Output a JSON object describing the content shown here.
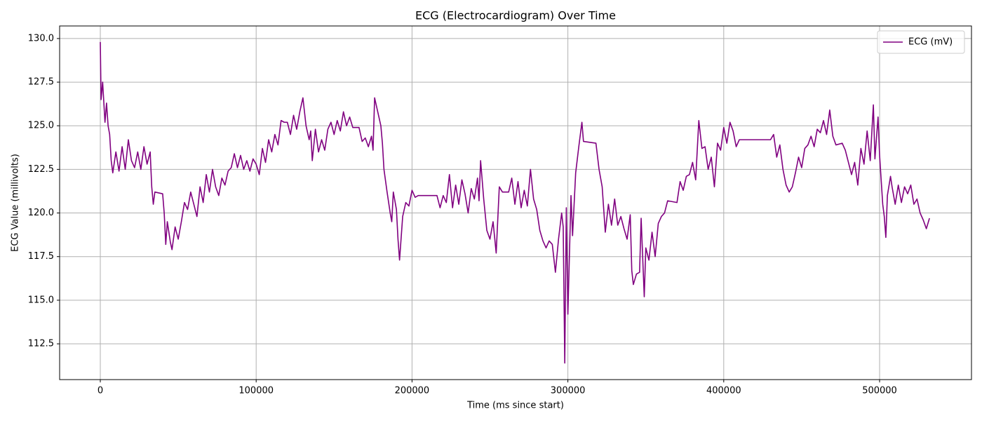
{
  "chart_data": {
    "type": "line",
    "title": "ECG (Electrocardiogram) Over Time",
    "xlabel": "Time (ms since start)",
    "ylabel": "ECG Value (millivolts)",
    "legend": "upper right",
    "grid": true,
    "xlim": [
      -26100,
      558950
    ],
    "ylim": [
      110.45,
      130.72
    ],
    "xticks": [
      0,
      100000,
      200000,
      300000,
      400000,
      500000
    ],
    "yticks": [
      112.5,
      {
        "value": 115,
        "label": "115.0"
      },
      117.5,
      {
        "value": 120,
        "label": "120.0"
      },
      122.5,
      {
        "value": 125,
        "label": "125.0"
      },
      127.5,
      {
        "value": 130,
        "label": "130.0"
      }
    ],
    "x": [
      0,
      500,
      1500,
      3000,
      4000,
      5000,
      6000,
      7000,
      8000,
      10000,
      12000,
      14000,
      16000,
      18000,
      20000,
      22000,
      24000,
      26000,
      28000,
      30000,
      32000,
      33000,
      34000,
      35000,
      40000,
      41000,
      42000,
      43000,
      45000,
      46000,
      48000,
      50000,
      52000,
      54000,
      56000,
      58000,
      60000,
      62000,
      64000,
      66000,
      68000,
      70000,
      72000,
      74000,
      76000,
      78000,
      80000,
      82000,
      84000,
      86000,
      88000,
      90000,
      92000,
      94000,
      96000,
      98000,
      100000,
      102000,
      104000,
      106000,
      108000,
      110000,
      112000,
      114000,
      116000,
      118000,
      120000,
      122000,
      124000,
      126000,
      128000,
      130000,
      132000,
      134000,
      135000,
      136000,
      138000,
      140000,
      142000,
      144000,
      146000,
      148000,
      150000,
      152000,
      154000,
      156000,
      158000,
      160000,
      162000,
      166000,
      168000,
      170000,
      172000,
      174000,
      175000,
      176000,
      178000,
      180000,
      181000,
      182000,
      184000,
      186000,
      187000,
      188000,
      190000,
      191000,
      192000,
      194000,
      196000,
      198000,
      200000,
      202000,
      204000,
      216000,
      218000,
      220000,
      222000,
      224000,
      226000,
      228000,
      230000,
      232000,
      234000,
      236000,
      238000,
      240000,
      242000,
      243000,
      244000,
      246000,
      248000,
      250000,
      252000,
      254000,
      256000,
      258000,
      262000,
      264000,
      266000,
      268000,
      270000,
      272000,
      274000,
      276000,
      278000,
      280000,
      282000,
      284000,
      286000,
      288000,
      290000,
      292000,
      294000,
      296000,
      297000,
      298000,
      299000,
      300000,
      302000,
      303000,
      305000,
      307000,
      309000,
      310000,
      318000,
      320000,
      322000,
      324000,
      326000,
      328000,
      330000,
      332000,
      334000,
      336000,
      338000,
      340000,
      341000,
      342000,
      344000,
      346000,
      347000,
      349000,
      350000,
      352000,
      354000,
      356000,
      358000,
      360000,
      362000,
      364000,
      370000,
      372000,
      374000,
      376000,
      378000,
      380000,
      382000,
      384000,
      386000,
      388000,
      390000,
      392000,
      394000,
      396000,
      398000,
      400000,
      402000,
      404000,
      406000,
      408000,
      410000,
      430000,
      432000,
      434000,
      436000,
      438000,
      440000,
      442000,
      444000,
      446000,
      448000,
      450000,
      452000,
      454000,
      456000,
      458000,
      460000,
      462000,
      464000,
      466000,
      468000,
      470000,
      472000,
      476000,
      478000,
      480000,
      482000,
      484000,
      486000,
      488000,
      490000,
      492000,
      494000,
      496000,
      497000,
      499000,
      500000,
      502000,
      503000,
      504000,
      505000,
      507000,
      508000,
      510000,
      512000,
      514000,
      516000,
      518000,
      520000,
      522000,
      524000,
      526000,
      528000,
      530000,
      532000
    ],
    "series": [
      {
        "name": "ECG (mV)",
        "color": "#800080",
        "values": [
          129.8,
          126.5,
          127.5,
          125.2,
          126.3,
          125,
          124.5,
          123,
          122.3,
          123.5,
          122.4,
          123.8,
          122.5,
          124.2,
          123.0,
          122.6,
          123.5,
          122.5,
          123.8,
          122.8,
          123.5,
          121.5,
          120.5,
          121.2,
          121.1,
          120,
          118.2,
          119.5,
          118.3,
          117.9,
          119.2,
          118.5,
          119.5,
          120.6,
          120.2,
          121.2,
          120.5,
          119.8,
          121.5,
          120.6,
          122.2,
          121.2,
          122.5,
          121.5,
          121.0,
          122.0,
          121.6,
          122.4,
          122.6,
          123.4,
          122.6,
          123.3,
          122.5,
          123.0,
          122.4,
          123.1,
          122.8,
          122.2,
          123.7,
          122.9,
          124.2,
          123.5,
          124.5,
          123.9,
          125.3,
          125.2,
          125.2,
          124.5,
          125.6,
          124.8,
          125.8,
          126.6,
          125.0,
          124.2,
          124.7,
          123.0,
          124.8,
          123.5,
          124.2,
          123.6,
          124.8,
          125.2,
          124.5,
          125.3,
          124.7,
          125.8,
          125.0,
          125.5,
          124.9,
          124.9,
          124.1,
          124.3,
          123.8,
          124.4,
          123.6,
          126.6,
          125.8,
          125.0,
          124,
          122.5,
          121.2,
          120.0,
          119.5,
          121.2,
          120.2,
          118.5,
          117.3,
          119.8,
          120.6,
          120.4,
          121.3,
          120.9,
          121.0,
          121.0,
          120.3,
          121.0,
          120.6,
          122.2,
          120.3,
          121.6,
          120.5,
          121.9,
          121.1,
          120.0,
          121.4,
          120.8,
          122.0,
          120.7,
          123.0,
          120.8,
          119.0,
          118.5,
          119.5,
          117.7,
          121.5,
          121.2,
          121.2,
          122.0,
          120.5,
          121.8,
          120.3,
          121.3,
          120.4,
          122.5,
          120.8,
          120.2,
          119.0,
          118.4,
          118.0,
          118.4,
          118.2,
          116.6,
          118.5,
          120.0,
          119.2,
          111.4,
          120.3,
          114.2,
          121.0,
          118.7,
          122.3,
          123.8,
          125.2,
          124.1,
          124.0,
          122.5,
          121.5,
          118.9,
          120.5,
          119.3,
          120.8,
          119.3,
          119.8,
          119.1,
          118.5,
          119.9,
          116.7,
          115.9,
          116.5,
          116.6,
          119.7,
          115.2,
          118.0,
          117.3,
          118.9,
          117.5,
          119.4,
          119.8,
          120.0,
          120.7,
          120.6,
          121.8,
          121.3,
          122.1,
          122.2,
          122.9,
          121.9,
          125.3,
          123.7,
          123.8,
          122.5,
          123.2,
          121.5,
          124.0,
          123.6,
          124.9,
          124.0,
          125.2,
          124.7,
          123.8,
          124.2,
          124.2,
          124.5,
          123.2,
          123.9,
          122.5,
          121.6,
          121.2,
          121.5,
          122.3,
          123.2,
          122.6,
          123.7,
          123.9,
          124.4,
          123.8,
          124.8,
          124.6,
          125.3,
          124.5,
          125.9,
          124.4,
          123.9,
          124.0,
          123.6,
          122.9,
          122.2,
          122.9,
          121.6,
          123.7,
          122.8,
          124.7,
          123.0,
          126.2,
          123.1,
          125.5,
          123.3,
          120.5,
          119.8,
          118.6,
          121.0,
          122.1,
          121.5,
          120.5,
          121.6,
          120.6,
          121.5,
          121.1,
          121.6,
          120.5,
          120.8,
          120.0,
          119.6,
          119.1,
          119.7
        ]
      }
    ]
  }
}
